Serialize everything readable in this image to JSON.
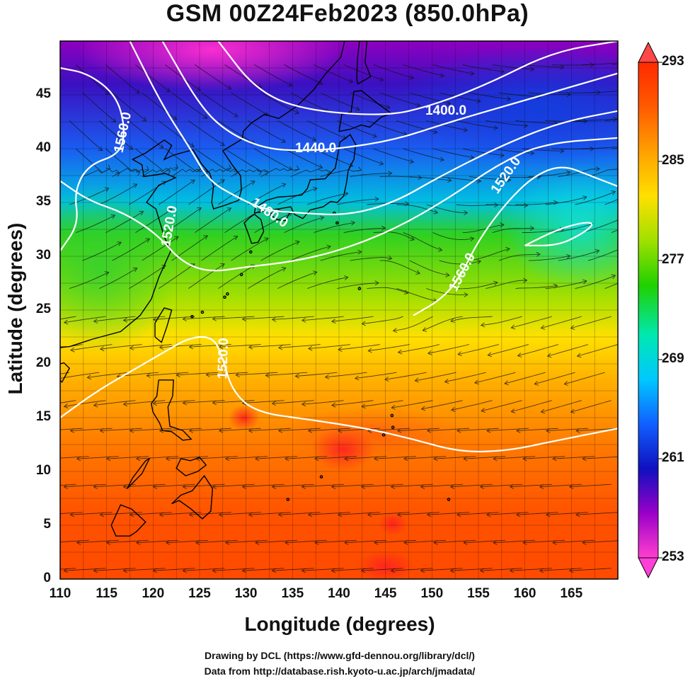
{
  "title": "GSM 00Z24Feb2023 (850.0hPa)",
  "xlabel": "Longitude (degrees)",
  "ylabel": "Latitude  (degrees)",
  "credit_lines": [
    "Drawing by DCL (https://www.gfd-dennou.org/library/dcl/)",
    "Data from http://database.rish.kyoto-u.ac.jp/arch/jmadata/"
  ],
  "chart_data": {
    "type": "heatmap",
    "xlim": [
      110,
      170
    ],
    "ylim": [
      0,
      50
    ],
    "x_ticks": [
      "110",
      "115",
      "120",
      "125",
      "130",
      "135",
      "140",
      "145",
      "150",
      "155",
      "160",
      "165"
    ],
    "y_ticks": [
      "0",
      "5",
      "10",
      "15",
      "20",
      "25",
      "30",
      "35",
      "40",
      "45"
    ],
    "grid": true,
    "colorbar": {
      "placement": "right",
      "range": [
        253,
        293
      ],
      "tick_labels": [
        "293",
        "285",
        "277",
        "269",
        "261",
        "253"
      ],
      "colors": [
        "#ff3fcf",
        "#9a00c8",
        "#1010c0",
        "#1060ff",
        "#00c8ff",
        "#00e8b0",
        "#20d000",
        "#a0e000",
        "#ffe000",
        "#ffa000",
        "#ff5a00",
        "#ff2a00"
      ]
    },
    "contour_labels": [
      {
        "text": "1400.0",
        "lon": 151.5,
        "lat": 43.5
      },
      {
        "text": "1440.0",
        "lon": 137.5,
        "lat": 40.0
      },
      {
        "text": "1480.0",
        "lon": 132.5,
        "lat": 34.0
      },
      {
        "text": "1520.0",
        "lon": 121.8,
        "lat": 32.8
      },
      {
        "text": "1520.0",
        "lon": 158.0,
        "lat": 37.5
      },
      {
        "text": "1520.0",
        "lon": 127.6,
        "lat": 20.5
      },
      {
        "text": "1560.0",
        "lon": 116.8,
        "lat": 41.5
      },
      {
        "text": "1560.0",
        "lon": 153.3,
        "lat": 28.5
      }
    ],
    "contours": [
      {
        "level": "1400.0",
        "points": [
          [
            127,
            50
          ],
          [
            131,
            45.5
          ],
          [
            136,
            43.6
          ],
          [
            145,
            43
          ],
          [
            150,
            44
          ],
          [
            156,
            46
          ],
          [
            163,
            49
          ],
          [
            170,
            50
          ]
        ]
      },
      {
        "level": "1440.0",
        "points": [
          [
            121,
            50
          ],
          [
            125,
            44
          ],
          [
            128,
            41.5
          ],
          [
            132,
            40
          ],
          [
            136,
            39.8
          ],
          [
            140,
            40
          ],
          [
            146,
            40.8
          ],
          [
            152,
            42.5
          ],
          [
            160,
            44.5
          ],
          [
            170,
            47
          ]
        ]
      },
      {
        "level": "1480.0",
        "points": [
          [
            117.5,
            50
          ],
          [
            121,
            44
          ],
          [
            124,
            40
          ],
          [
            126,
            37
          ],
          [
            129,
            35.5
          ],
          [
            132,
            34.3
          ],
          [
            136,
            34
          ],
          [
            141,
            33.8
          ],
          [
            146,
            35
          ],
          [
            151,
            37.5
          ],
          [
            158,
            40.5
          ],
          [
            164,
            42.5
          ],
          [
            170,
            43.5
          ]
        ]
      },
      {
        "level": "1520.0",
        "points": [
          [
            110,
            37
          ],
          [
            113,
            35.2
          ],
          [
            117,
            34
          ],
          [
            120.5,
            32
          ],
          [
            123,
            29.5
          ],
          [
            126,
            28.5
          ],
          [
            130,
            29
          ],
          [
            135,
            29.5
          ],
          [
            140,
            30.5
          ],
          [
            146,
            32.5
          ],
          [
            152,
            35.5
          ],
          [
            157,
            38.5
          ],
          [
            162,
            40.5
          ],
          [
            170,
            41
          ]
        ]
      },
      {
        "level": "1560.0",
        "points": [
          [
            110,
            47.5
          ],
          [
            113,
            47
          ],
          [
            116,
            45
          ],
          [
            117,
            42
          ],
          [
            116.5,
            39.5
          ],
          [
            113,
            38.5
          ],
          [
            111.5,
            36
          ],
          [
            112,
            33
          ],
          [
            110,
            30.5
          ]
        ]
      },
      {
        "level": "1560.0",
        "points": [
          [
            148,
            24.5
          ],
          [
            151,
            26
          ],
          [
            153,
            28
          ],
          [
            155,
            31.5
          ],
          [
            158,
            35
          ],
          [
            161,
            37.5
          ],
          [
            164,
            38.5
          ],
          [
            167,
            37.5
          ],
          [
            170,
            36.5
          ]
        ]
      },
      {
        "level": "1520.0",
        "points": [
          [
            110,
            15
          ],
          [
            114,
            17.5
          ],
          [
            118,
            19.5
          ],
          [
            121,
            21
          ],
          [
            124,
            22.5
          ],
          [
            126.5,
            22.5
          ],
          [
            127.5,
            20.5
          ],
          [
            128.5,
            17.5
          ],
          [
            131,
            15.5
          ],
          [
            137,
            14.8
          ],
          [
            143,
            14
          ],
          [
            148,
            13
          ],
          [
            153,
            11.8
          ],
          [
            158,
            11.9
          ],
          [
            163,
            12.8
          ],
          [
            170,
            14
          ]
        ]
      },
      {
        "level": "1560.0",
        "points": [
          [
            160,
            31
          ],
          [
            163.5,
            32.5
          ],
          [
            166.5,
            33.2
          ],
          [
            167.5,
            33
          ],
          [
            166,
            32
          ],
          [
            163.5,
            31
          ],
          [
            160,
            31
          ]
        ]
      }
    ]
  }
}
